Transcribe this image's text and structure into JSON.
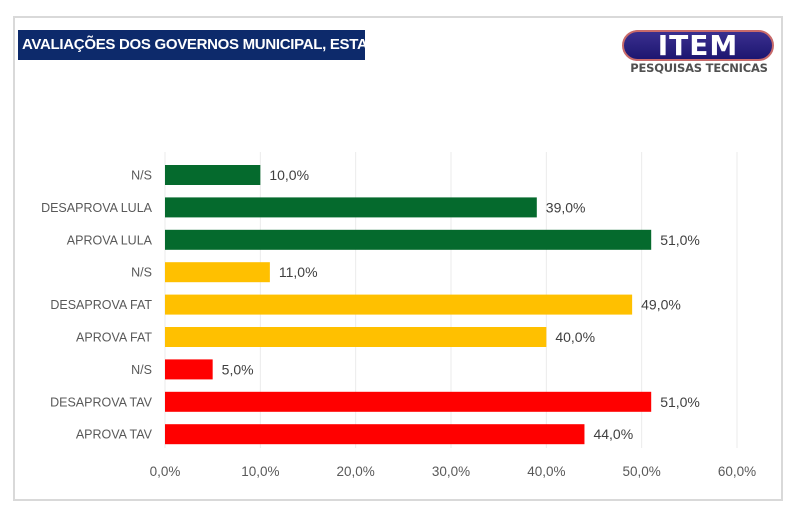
{
  "header": {
    "title": "AVALIAÇÕES DOS GOVERNOS MUNICIPAL, ESTADUAL e FEDERAL",
    "logo_main": "ITEM",
    "logo_sub": "PESQUISAS TECNICAS"
  },
  "colors": {
    "title_bg": "#0d2a6b",
    "lula": "#056a2d",
    "fat": "#ffc000",
    "tav": "#ff0000",
    "gridline": "#ebebeb"
  },
  "chart_data": {
    "type": "bar",
    "orientation": "horizontal",
    "title": "AVALIAÇÕES DOS GOVERNOS MUNICIPAL, ESTADUAL e FEDERAL",
    "xlabel": "",
    "ylabel": "",
    "xlim": [
      0,
      60
    ],
    "grid": true,
    "legend": "none",
    "x_ticks": [
      "0,0%",
      "10,0%",
      "20,0%",
      "30,0%",
      "40,0%",
      "50,0%",
      "60,0%"
    ],
    "x_tick_values": [
      0,
      10,
      20,
      30,
      40,
      50,
      60
    ],
    "categories": [
      "N/S",
      "DESAPROVA LULA",
      "APROVA LULA",
      "N/S",
      "DESAPROVA FAT",
      "APROVA FAT",
      "N/S",
      "DESAPROVA TAV",
      "APROVA TAV"
    ],
    "values": [
      10,
      39,
      51,
      11,
      49,
      40,
      5,
      51,
      44
    ],
    "value_labels": [
      "10,0%",
      "39,0%",
      "51,0%",
      "11,0%",
      "49,0%",
      "40,0%",
      "5,0%",
      "51,0%",
      "44,0%"
    ],
    "groups": [
      "lula",
      "lula",
      "lula",
      "fat",
      "fat",
      "fat",
      "tav",
      "tav",
      "tav"
    ]
  }
}
